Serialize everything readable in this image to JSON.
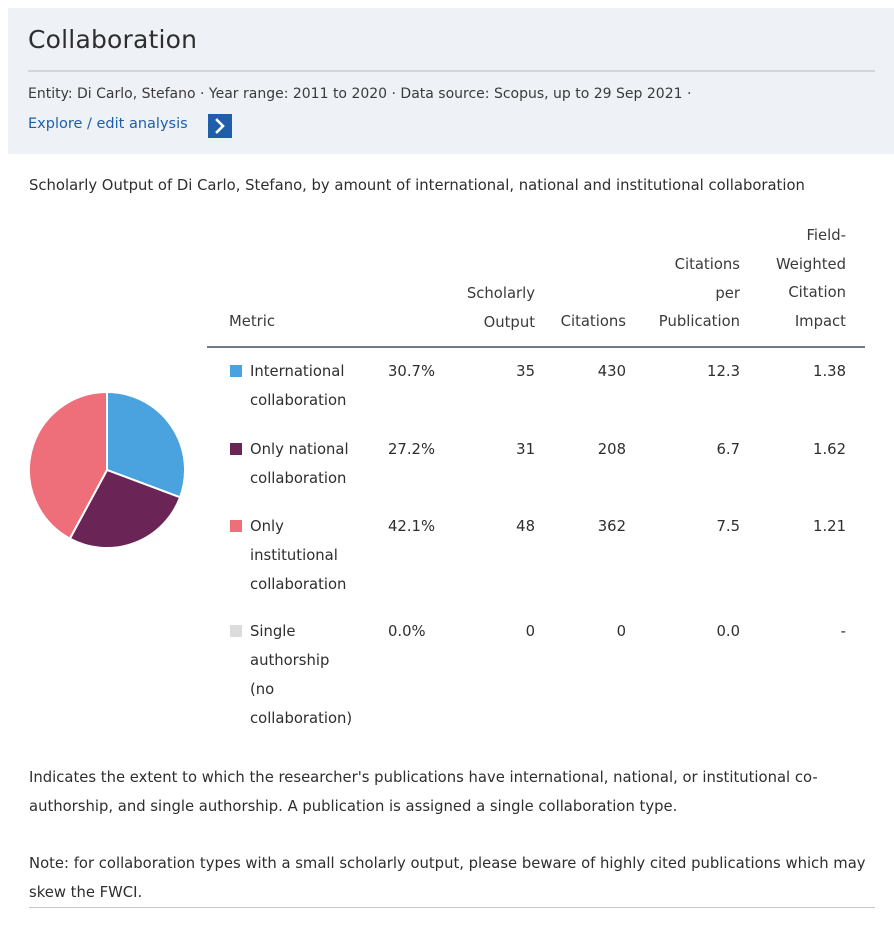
{
  "header": {
    "title": "Collaboration",
    "meta": "Entity: Di Carlo, Stefano  ·  Year range: 2011 to 2020 ·  Data source: Scopus, up to 29 Sep 2021 ·",
    "explore_label": "Explore / edit analysis"
  },
  "subtitle": "Scholarly Output of Di Carlo, Stefano, by amount of international, national and institutional collaboration",
  "table": {
    "headers": {
      "metric": "Metric",
      "scholarly_output": "Scholarly\nOutput",
      "citations": "Citations",
      "citations_per_publication": "Citations\nper\nPublication",
      "fwci": "Field-\nWeighted\nCitation\nImpact"
    },
    "rows": [
      {
        "label": "International\ncollaboration",
        "color": "#4aa3df",
        "percent": "30.7%",
        "scholarly_output": "35",
        "citations": "430",
        "citations_per_publication": "12.3",
        "fwci": "1.38"
      },
      {
        "label": "Only national\ncollaboration",
        "color": "#6b2456",
        "percent": "27.2%",
        "scholarly_output": "31",
        "citations": "208",
        "citations_per_publication": "6.7",
        "fwci": "1.62"
      },
      {
        "label": "Only\ninstitutional\ncollaboration",
        "color": "#ee6e7a",
        "percent": "42.1%",
        "scholarly_output": "48",
        "citations": "362",
        "citations_per_publication": "7.5",
        "fwci": "1.21"
      },
      {
        "label": "Single\nauthorship\n(no\ncollaboration)",
        "color": "#dcdcdc",
        "percent": "0.0%",
        "scholarly_output": "0",
        "citations": "0",
        "citations_per_publication": "0.0",
        "fwci": "-"
      }
    ]
  },
  "pie": {
    "slices": [
      {
        "name": "International collaboration",
        "value": 30.7,
        "color": "#4aa3df"
      },
      {
        "name": "Only national collaboration",
        "value": 27.2,
        "color": "#6b2456"
      },
      {
        "name": "Only institutional collaboration",
        "value": 42.1,
        "color": "#ee6e7a"
      },
      {
        "name": "Single authorship (no collaboration)",
        "value": 0.0,
        "color": "#dcdcdc"
      }
    ]
  },
  "description": "Indicates the extent to which the researcher's publications have international, national, or institutional co-authorship, and single authorship. A publication is assigned a single collaboration type.",
  "note": "Note: for collaboration types with a small scholarly output, please beware of highly cited publications which may skew the FWCI."
}
